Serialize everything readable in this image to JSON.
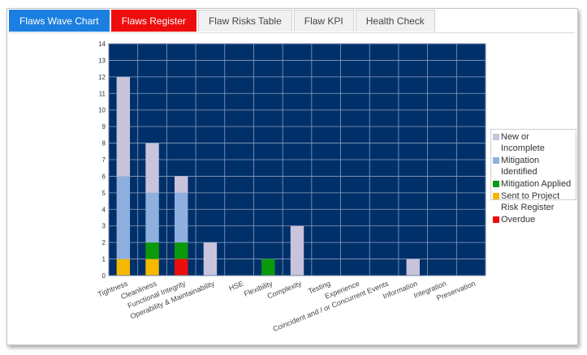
{
  "tabs": [
    {
      "label": "Flaws Wave Chart",
      "color": "#1a7fe0"
    },
    {
      "label": "Flaws Register",
      "color": "#ee0d0d"
    },
    {
      "label": "Flaw Risks Table"
    },
    {
      "label": "Flaw KPI"
    },
    {
      "label": "Health Check"
    }
  ],
  "chart_data": {
    "type": "bar",
    "stacked": true,
    "background": "#00306a",
    "grid": true,
    "legend_position": "right",
    "ylim": [
      0,
      14
    ],
    "yticks": [
      0,
      1,
      2,
      3,
      4,
      5,
      6,
      7,
      8,
      9,
      10,
      11,
      12,
      13,
      14
    ],
    "categories": [
      "Tightness",
      "Cleanliness",
      "Functional Integrity",
      "Operability & Maintainability",
      "HSE",
      "Flexibility",
      "Complexity",
      "Testing",
      "Experience",
      "Coincident and / or Concurrent Events",
      "Information",
      "Integration",
      "Preservation"
    ],
    "tick_labels": [
      "Tightness",
      "Cleanliness",
      "Functional Integrity",
      "Operability & Maintainability",
      "HSE",
      "Flexibility",
      "Complexity",
      "Testing",
      "Experience",
      "Coincident and / or Concurrent Events",
      "Information",
      "Integration",
      "Preservation"
    ],
    "series": [
      {
        "name": "Overdue",
        "color": "#ee0d0d",
        "values": [
          0,
          0,
          1,
          0,
          0,
          0,
          0,
          0,
          0,
          0,
          0,
          0,
          0
        ]
      },
      {
        "name": "Sent to Project Risk Register",
        "color": "#f6b800",
        "values": [
          1,
          1,
          0,
          0,
          0,
          0,
          0,
          0,
          0,
          0,
          0,
          0,
          0
        ]
      },
      {
        "name": "Mitigation Applied",
        "color": "#0a9a0a",
        "values": [
          0,
          1,
          1,
          0,
          0,
          1,
          0,
          0,
          0,
          0,
          0,
          0,
          0
        ]
      },
      {
        "name": "Mitigation Identified",
        "color": "#8fb0de",
        "values": [
          5,
          3,
          3,
          0,
          0,
          0,
          0,
          0,
          0,
          0,
          0,
          0,
          0
        ]
      },
      {
        "name": "New or Incomplete",
        "color": "#c9c3dc",
        "values": [
          6,
          3,
          1,
          2,
          0,
          0,
          3,
          0,
          0,
          0,
          1,
          0,
          0
        ]
      }
    ],
    "legend_order": [
      "New or Incomplete",
      "Mitigation Identified",
      "Mitigation Applied",
      "Sent to Project Risk Register",
      "Overdue"
    ]
  }
}
